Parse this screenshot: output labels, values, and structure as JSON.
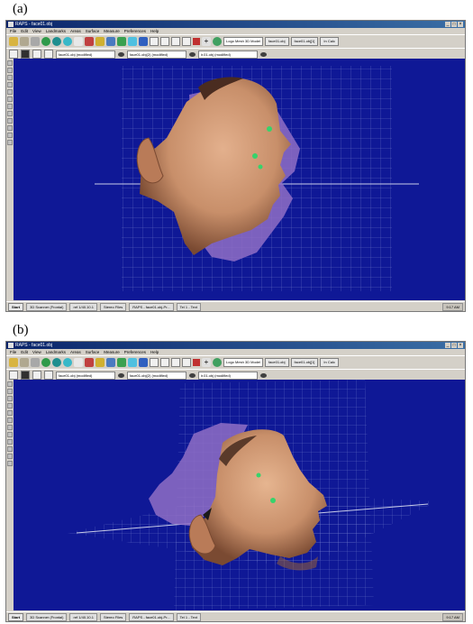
{
  "panels": [
    {
      "label": "(a)",
      "window_title": "RAPS - face01.obj",
      "menu": [
        "File",
        "Edit",
        "View",
        "Landmarks",
        "Areas",
        "Surface",
        "Measure",
        "Preferences",
        "Help"
      ],
      "combo_value": "Logo Mesh 3D Model",
      "buttons": [
        "face01.obj",
        "face01.obj[1]",
        "In Calc"
      ],
      "fields": [
        "face01.obj (modified)",
        "face01.obj(2) (modified)",
        "ir.01.obj (modified)"
      ],
      "taskbar": {
        "start": "Start",
        "tasks": [
          "3D Scanner (Frontal)",
          "ref 1/40.10.1",
          "Stereo Files",
          "RAPS - face01.obj-Pr...",
          "Tel 1 - Text"
        ],
        "tray": "9:17 AM"
      }
    },
    {
      "label": "(b)",
      "window_title": "RAPS - face01.obj",
      "menu": [
        "File",
        "Edit",
        "View",
        "Landmarks",
        "Areas",
        "Surface",
        "Measure",
        "Preferences",
        "Help"
      ],
      "combo_value": "Logo Mesh 3D Model",
      "buttons": [
        "face01.obj",
        "face01.obj[1]",
        "In Calc"
      ],
      "fields": [
        "face01.obj (modified)",
        "face01.obj(2) (modified)",
        "ir.01.obj (modified)"
      ],
      "taskbar": {
        "start": "Start",
        "tasks": [
          "3D Scanner (Frontal)",
          "ref 1/40.10.1",
          "Stereo Files",
          "RAPS - face01.obj-Pr...",
          "Tel 1 - Text"
        ],
        "tray": "9:17 AM"
      }
    }
  ],
  "colors": {
    "viewport_bg": "#0f1896",
    "grid": "#8a92d8",
    "skin": "#c98f6b",
    "overlay": "#8f6fc6",
    "landmark": "#36d36b"
  }
}
